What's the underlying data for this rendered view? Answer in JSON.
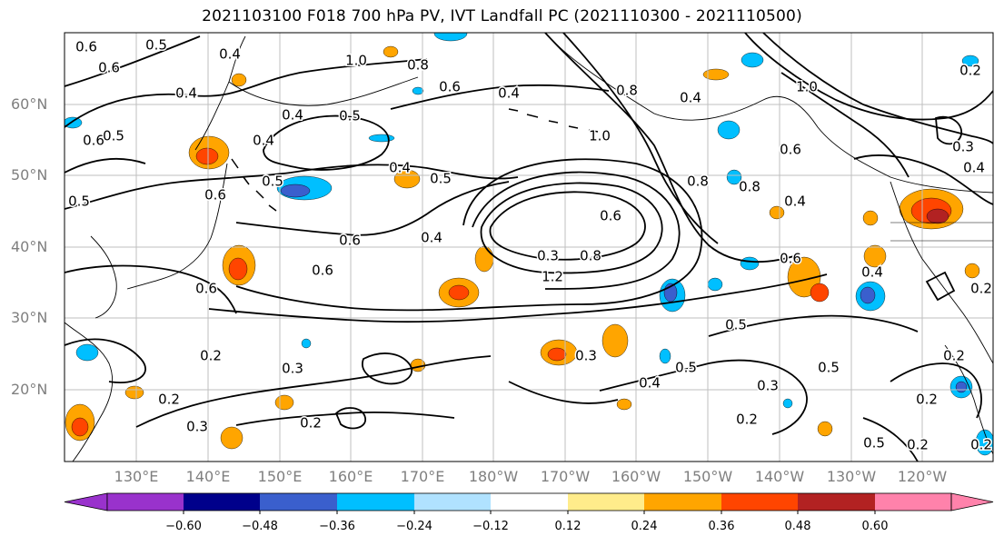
{
  "title": "2021103100 F018 700 hPa PV, IVT Landfall PC (2021110300 - 2021110500)",
  "lat_labels": [
    "60°N",
    "50°N",
    "40°N",
    "30°N",
    "20°N"
  ],
  "lon_labels": [
    "130°E",
    "140°E",
    "150°E",
    "160°E",
    "170°E",
    "180°W",
    "170°W",
    "160°W",
    "150°W",
    "140°W",
    "130°W",
    "120°W"
  ],
  "contour_labels": [
    "0.6",
    "0.5",
    "0.4",
    "0.6",
    "0.4",
    "1.0",
    "0.8",
    "0.6",
    "0.4",
    "0.5",
    "0.4",
    "0.6",
    "0.5",
    "0.5",
    "0.4",
    "0.5",
    "0.6",
    "0.4",
    "0.6",
    "0.5",
    "0.4",
    "0.6",
    "0.6",
    "0.3",
    "1.2",
    "0.8",
    "0.6",
    "1.0",
    "0.4",
    "0.8",
    "1.0",
    "0.8",
    "0.8",
    "0.6",
    "0.4",
    "0.3",
    "0.4",
    "0.6",
    "0.5",
    "0.5",
    "0.4",
    "0.3",
    "0.2",
    "0.3",
    "0.2",
    "0.3",
    "0.2",
    "0.2",
    "0.3",
    "0.2",
    "0.2",
    "0.2",
    "0.5",
    "0.2",
    "0.2",
    "0.5",
    "0.4",
    "0.2"
  ],
  "colorbar": {
    "colors": [
      "#9932cc",
      "#00008b",
      "#3a5fcd",
      "#00bfff",
      "#b0e2ff",
      "#ffffff",
      "#ffec8b",
      "#ffa500",
      "#ff4500",
      "#b22222",
      "#ff82ab"
    ],
    "tick_labels": [
      "−0.60",
      "−0.48",
      "−0.36",
      "−0.24",
      "−0.12",
      "0.12",
      "0.24",
      "0.36",
      "0.48",
      "0.60"
    ]
  },
  "colors": {
    "contour": "#000000",
    "grid": "#bfbfbf",
    "coast": "#000000",
    "axis_label": "#7f7f7f"
  }
}
